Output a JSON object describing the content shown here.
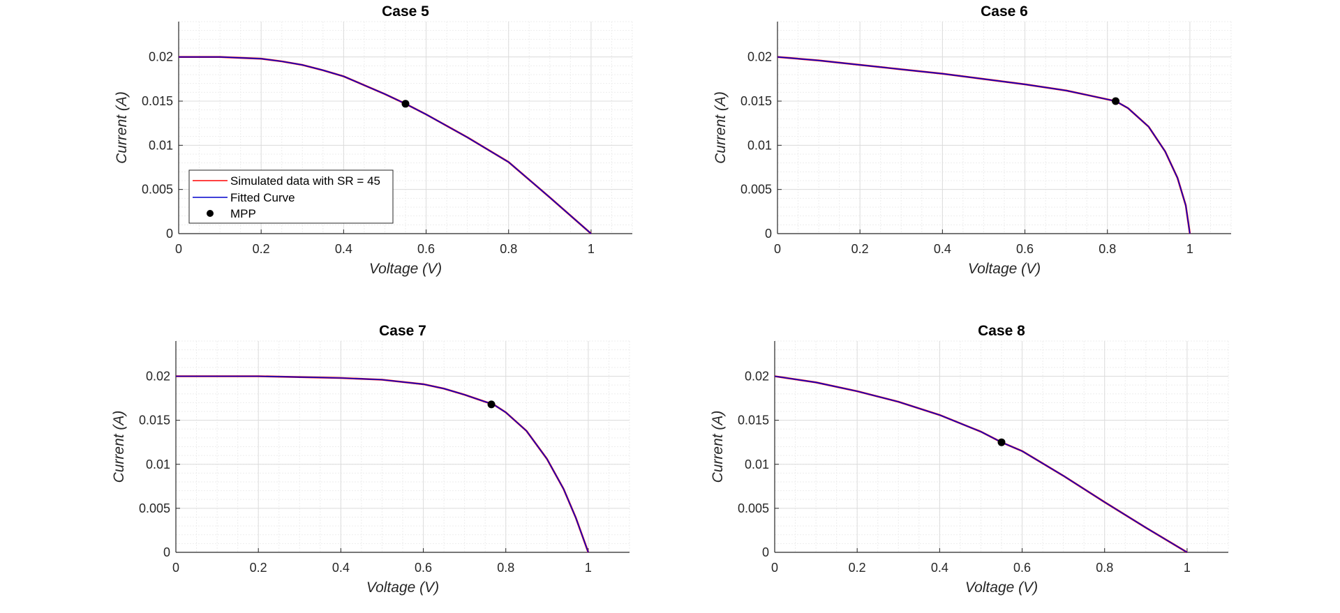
{
  "figure": {
    "background": "#ffffff"
  },
  "colors": {
    "simulated": "#ff0000",
    "fitted": "#0000cc",
    "mpp": "#000000",
    "axis": "#262626",
    "grid_major": "#dcdcdc",
    "grid_minor": "#ededed"
  },
  "legend": {
    "entries": [
      "Simulated data with SR = 45",
      "Fitted Curve",
      "MPP"
    ]
  },
  "chart_data": [
    {
      "type": "line",
      "title": "Case 5",
      "xlabel": "Voltage (V)",
      "ylabel": "Current (A)",
      "xlim": [
        0,
        1.1
      ],
      "ylim": [
        0,
        0.024
      ],
      "xticks": [
        0,
        0.2,
        0.4,
        0.6,
        0.8,
        1
      ],
      "xtick_labels": [
        "0",
        "0.2",
        "0.4",
        "0.6",
        "0.8",
        "1"
      ],
      "yticks": [
        0,
        0.005,
        0.01,
        0.015,
        0.02
      ],
      "ytick_labels": [
        "0",
        "0.005",
        "0.01",
        "0.015",
        "0.02"
      ],
      "grid": true,
      "minor_grid": true,
      "legend_position": "bottom-left",
      "series": [
        {
          "name": "Simulated data with SR = 45",
          "color": "#ff0000",
          "x": [
            0,
            0.1,
            0.2,
            0.25,
            0.3,
            0.35,
            0.4,
            0.45,
            0.5,
            0.55,
            0.6,
            0.7,
            0.8,
            0.9,
            1.0
          ],
          "y": [
            0.02,
            0.02,
            0.0198,
            0.0195,
            0.0191,
            0.0185,
            0.0178,
            0.0168,
            0.0158,
            0.0147,
            0.0135,
            0.0109,
            0.0081,
            0.0041,
            0.0
          ]
        },
        {
          "name": "Fitted Curve",
          "color": "#0000cc",
          "x": [
            0,
            0.1,
            0.2,
            0.25,
            0.3,
            0.35,
            0.4,
            0.45,
            0.5,
            0.55,
            0.6,
            0.7,
            0.8,
            0.9,
            1.0
          ],
          "y": [
            0.02,
            0.02,
            0.0198,
            0.0195,
            0.0191,
            0.0185,
            0.0178,
            0.0168,
            0.0158,
            0.0147,
            0.0135,
            0.0109,
            0.0081,
            0.0041,
            0.0
          ]
        }
      ],
      "mpp": {
        "x": 0.55,
        "y": 0.0147
      }
    },
    {
      "type": "line",
      "title": "Case 6",
      "xlabel": "Voltage (V)",
      "ylabel": "Current (A)",
      "xlim": [
        0,
        1.1
      ],
      "ylim": [
        0,
        0.024
      ],
      "xticks": [
        0,
        0.2,
        0.4,
        0.6,
        0.8,
        1
      ],
      "xtick_labels": [
        "0",
        "0.2",
        "0.4",
        "0.6",
        "0.8",
        "1"
      ],
      "yticks": [
        0,
        0.005,
        0.01,
        0.015,
        0.02
      ],
      "ytick_labels": [
        "0",
        "0.005",
        "0.01",
        "0.015",
        "0.02"
      ],
      "grid": true,
      "minor_grid": true,
      "series": [
        {
          "name": "Simulated data with SR = 45",
          "color": "#ff0000",
          "x": [
            0,
            0.1,
            0.2,
            0.3,
            0.4,
            0.5,
            0.6,
            0.7,
            0.75,
            0.8,
            0.82,
            0.85,
            0.9,
            0.94,
            0.97,
            0.99,
            1.0
          ],
          "y": [
            0.02,
            0.0196,
            0.0191,
            0.0186,
            0.0181,
            0.0175,
            0.0169,
            0.0162,
            0.0157,
            0.0152,
            0.015,
            0.0142,
            0.0121,
            0.0093,
            0.0063,
            0.0032,
            0.0
          ]
        },
        {
          "name": "Fitted Curve",
          "color": "#0000cc",
          "x": [
            0,
            0.1,
            0.2,
            0.3,
            0.4,
            0.5,
            0.6,
            0.7,
            0.75,
            0.8,
            0.82,
            0.85,
            0.9,
            0.94,
            0.97,
            0.99,
            1.0
          ],
          "y": [
            0.02,
            0.0196,
            0.0191,
            0.0186,
            0.0181,
            0.0175,
            0.0169,
            0.0162,
            0.0157,
            0.0152,
            0.015,
            0.0142,
            0.0121,
            0.0093,
            0.0063,
            0.0032,
            0.0
          ]
        }
      ],
      "mpp": {
        "x": 0.82,
        "y": 0.015
      }
    },
    {
      "type": "line",
      "title": "Case 7",
      "xlabel": "Voltage (V)",
      "ylabel": "Current (A)",
      "xlim": [
        0,
        1.1
      ],
      "ylim": [
        0,
        0.024
      ],
      "xticks": [
        0,
        0.2,
        0.4,
        0.6,
        0.8,
        1
      ],
      "xtick_labels": [
        "0",
        "0.2",
        "0.4",
        "0.6",
        "0.8",
        "1"
      ],
      "yticks": [
        0,
        0.005,
        0.01,
        0.015,
        0.02
      ],
      "ytick_labels": [
        "0",
        "0.005",
        "0.01",
        "0.015",
        "0.02"
      ],
      "grid": true,
      "minor_grid": true,
      "series": [
        {
          "name": "Simulated data with SR = 45",
          "color": "#ff0000",
          "x": [
            0,
            0.2,
            0.4,
            0.5,
            0.6,
            0.65,
            0.7,
            0.75,
            0.77,
            0.8,
            0.85,
            0.9,
            0.94,
            0.97,
            1.0
          ],
          "y": [
            0.02,
            0.02,
            0.0198,
            0.0196,
            0.0191,
            0.0186,
            0.0179,
            0.0171,
            0.0168,
            0.0159,
            0.0138,
            0.0106,
            0.0072,
            0.0039,
            0.0
          ]
        },
        {
          "name": "Fitted Curve",
          "color": "#0000cc",
          "x": [
            0,
            0.2,
            0.4,
            0.5,
            0.6,
            0.65,
            0.7,
            0.75,
            0.77,
            0.8,
            0.85,
            0.9,
            0.94,
            0.97,
            1.0
          ],
          "y": [
            0.02,
            0.02,
            0.0198,
            0.0196,
            0.0191,
            0.0186,
            0.0179,
            0.0171,
            0.0168,
            0.0159,
            0.0138,
            0.0106,
            0.0072,
            0.0039,
            0.0
          ]
        }
      ],
      "mpp": {
        "x": 0.765,
        "y": 0.0168
      }
    },
    {
      "type": "line",
      "title": "Case 8",
      "xlabel": "Voltage (V)",
      "ylabel": "Current (A)",
      "xlim": [
        0,
        1.1
      ],
      "ylim": [
        0,
        0.024
      ],
      "xticks": [
        0,
        0.2,
        0.4,
        0.6,
        0.8,
        1
      ],
      "xtick_labels": [
        "0",
        "0.2",
        "0.4",
        "0.6",
        "0.8",
        "1"
      ],
      "yticks": [
        0,
        0.005,
        0.01,
        0.015,
        0.02
      ],
      "ytick_labels": [
        "0",
        "0.005",
        "0.01",
        "0.015",
        "0.02"
      ],
      "grid": true,
      "minor_grid": true,
      "series": [
        {
          "name": "Simulated data with SR = 45",
          "color": "#ff0000",
          "x": [
            0,
            0.1,
            0.2,
            0.3,
            0.4,
            0.5,
            0.55,
            0.6,
            0.7,
            0.8,
            0.9,
            1.0
          ],
          "y": [
            0.02,
            0.0193,
            0.0183,
            0.0171,
            0.0156,
            0.0137,
            0.0125,
            0.0115,
            0.0087,
            0.0057,
            0.0028,
            0.0
          ]
        },
        {
          "name": "Fitted Curve",
          "color": "#0000cc",
          "x": [
            0,
            0.1,
            0.2,
            0.3,
            0.4,
            0.5,
            0.55,
            0.6,
            0.7,
            0.8,
            0.9,
            1.0
          ],
          "y": [
            0.02,
            0.0193,
            0.0183,
            0.0171,
            0.0156,
            0.0137,
            0.0125,
            0.0115,
            0.0087,
            0.0057,
            0.0028,
            0.0
          ]
        }
      ],
      "mpp": {
        "x": 0.55,
        "y": 0.0125
      }
    }
  ]
}
